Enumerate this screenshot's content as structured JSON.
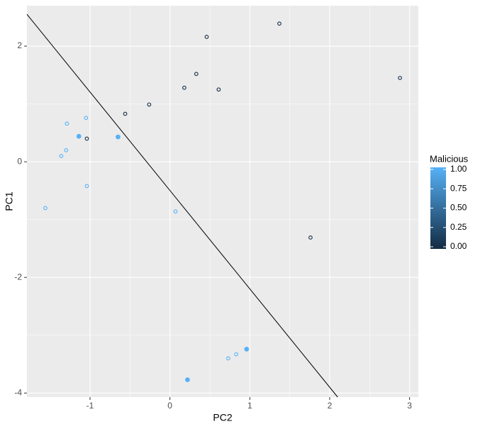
{
  "chart_data": {
    "type": "scatter",
    "x_label": "PC2",
    "y_label": "PC1",
    "x": [
      0.46,
      1.37,
      0.33,
      0.18,
      0.61,
      2.88,
      -0.26,
      -0.56,
      -1.04,
      1.76,
      -1.29,
      -1.05,
      -1.3,
      -1.36,
      -1.04,
      -1.56,
      0.07,
      0.73,
      0.83,
      -1.14,
      -0.65,
      0.96,
      0.22
    ],
    "y": [
      2.16,
      2.39,
      1.52,
      1.28,
      1.25,
      1.45,
      0.99,
      0.83,
      0.4,
      -1.31,
      0.66,
      0.76,
      0.2,
      0.1,
      -0.42,
      -0.8,
      -0.86,
      -3.4,
      -3.33,
      0.44,
      0.43,
      -3.24,
      -3.77
    ],
    "malicious": [
      0,
      0,
      0,
      0,
      0,
      0,
      0,
      0,
      0,
      0,
      1,
      1,
      1,
      1,
      1,
      1,
      1,
      1,
      1,
      1,
      1,
      1,
      1
    ],
    "filled": [
      false,
      false,
      false,
      false,
      false,
      false,
      false,
      false,
      false,
      false,
      false,
      false,
      false,
      false,
      false,
      false,
      false,
      false,
      false,
      true,
      true,
      true,
      true
    ],
    "line": {
      "x": [
        -1.79,
        2.1
      ],
      "y": [
        2.55,
        -4.07
      ]
    },
    "xlim": [
      -1.79,
      3.11
    ],
    "ylim": [
      -4.07,
      2.7
    ],
    "xticks": [
      -1,
      0,
      1,
      2,
      3
    ],
    "yticks": [
      -4,
      -2,
      0,
      2
    ],
    "grid": true,
    "legend": {
      "title": "Malicious",
      "position": "right",
      "low_color": "#132B43",
      "high_color": "#56B1F7",
      "lim": [
        0,
        1
      ],
      "ticks": [
        {
          "value": 0,
          "label": "0.00"
        },
        {
          "value": 0.25,
          "label": "0.25"
        },
        {
          "value": 0.5,
          "label": "0.50"
        },
        {
          "value": 0.75,
          "label": "0.75"
        },
        {
          "value": 1,
          "label": "1.00"
        }
      ]
    }
  }
}
